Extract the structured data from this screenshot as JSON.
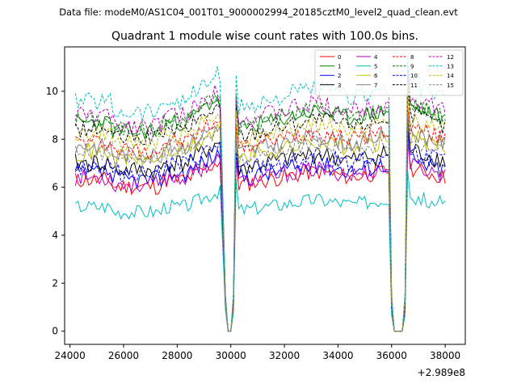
{
  "figure": {
    "suptitle": "Data file: modeM0/AS1C04_001T01_9000002994_20185cztM0_level2_quad_clean.evt"
  },
  "chart_data": {
    "type": "line",
    "title": "Quadrant 1 module wise count rates with 100.0s bins.",
    "xlabel": "",
    "ylabel": "",
    "x_offset_label": "+2.989e8",
    "xlim": [
      23800,
      38750
    ],
    "ylim": [
      -0.55,
      11.85
    ],
    "x_ticks": [
      24000,
      26000,
      28000,
      30000,
      32000,
      34000,
      36000,
      38000
    ],
    "x_tick_labels": [
      "24000",
      "26000",
      "28000",
      "30000",
      "32000",
      "34000",
      "36000",
      "38000"
    ],
    "y_ticks": [
      0,
      2,
      4,
      6,
      8,
      10
    ],
    "y_tick_labels": [
      "0",
      "2",
      "4",
      "6",
      "8",
      "10"
    ],
    "legend_position": "upper-right",
    "x_bins": {
      "segments": [
        [
          24200,
          29600
        ],
        [
          30200,
          35900
        ],
        [
          36600,
          38000
        ]
      ],
      "gaps": [
        [
          29800,
          30100
        ],
        [
          36000,
          36500
        ]
      ],
      "step": 100
    },
    "series": [
      {
        "name": "0",
        "color": "#ff0000",
        "dash": "solid",
        "mean": 6.3,
        "noise": 0.35,
        "seed": 11
      },
      {
        "name": "1",
        "color": "#008000",
        "dash": "solid",
        "mean": 8.7,
        "noise": 0.35,
        "seed": 23
      },
      {
        "name": "2",
        "color": "#0000ff",
        "dash": "solid",
        "mean": 6.6,
        "noise": 0.4,
        "seed": 37
      },
      {
        "name": "3",
        "color": "#000000",
        "dash": "solid",
        "mean": 7.0,
        "noise": 0.4,
        "seed": 41
      },
      {
        "name": "4",
        "color": "#bf00bf",
        "dash": "solid",
        "mean": 6.4,
        "noise": 0.35,
        "seed": 53
      },
      {
        "name": "5",
        "color": "#00bfbf",
        "dash": "solid",
        "mean": 5.2,
        "noise": 0.3,
        "seed": 67
      },
      {
        "name": "6",
        "color": "#bfbf00",
        "dash": "solid",
        "mean": 7.5,
        "noise": 0.4,
        "seed": 71
      },
      {
        "name": "7",
        "color": "#808080",
        "dash": "solid",
        "mean": 7.7,
        "noise": 0.35,
        "seed": 83
      },
      {
        "name": "8",
        "color": "#ff0000",
        "dash": "dashed",
        "mean": 7.9,
        "noise": 0.35,
        "seed": 97
      },
      {
        "name": "9",
        "color": "#008000",
        "dash": "dashed",
        "mean": 8.8,
        "noise": 0.35,
        "seed": 101
      },
      {
        "name": "10",
        "color": "#0000ff",
        "dash": "dashed",
        "mean": 6.9,
        "noise": 0.4,
        "seed": 113
      },
      {
        "name": "11",
        "color": "#000000",
        "dash": "dashed",
        "mean": 8.4,
        "noise": 0.35,
        "seed": 127
      },
      {
        "name": "12",
        "color": "#bf00bf",
        "dash": "dashed",
        "mean": 9.0,
        "noise": 0.4,
        "seed": 131
      },
      {
        "name": "13",
        "color": "#00bfbf",
        "dash": "dashed",
        "mean": 9.6,
        "noise": 0.4,
        "seed": 139
      },
      {
        "name": "14",
        "color": "#bfbf00",
        "dash": "dashed",
        "mean": 8.2,
        "noise": 0.35,
        "seed": 149
      },
      {
        "name": "15",
        "color": "#808080",
        "dash": "dashed",
        "mean": 7.4,
        "noise": 0.35,
        "seed": 157
      }
    ]
  }
}
